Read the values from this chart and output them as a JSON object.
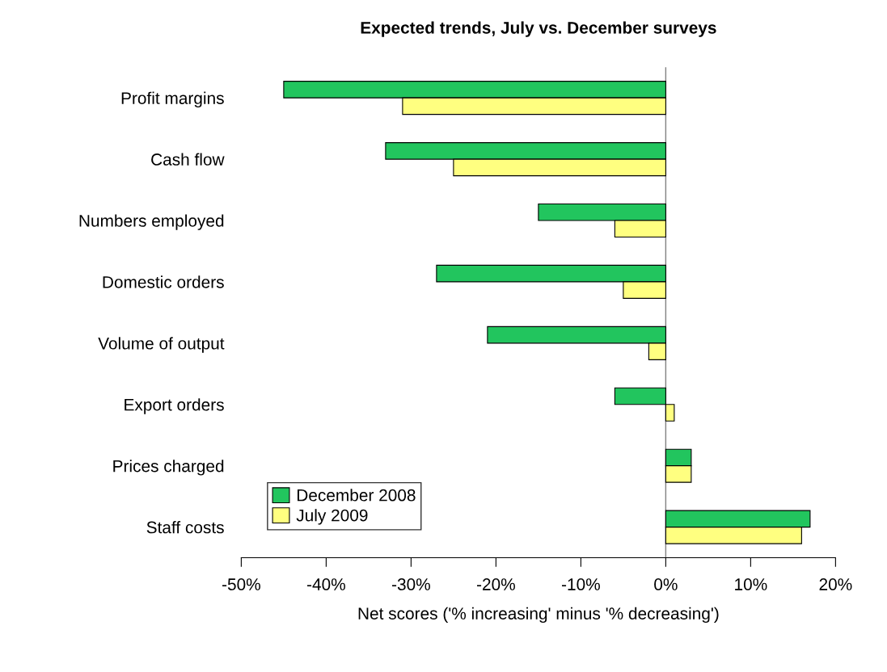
{
  "chart_data": {
    "type": "bar",
    "orientation": "horizontal",
    "title": "Expected trends, July vs. December surveys",
    "xlabel": "Net scores ('% increasing' minus '% decreasing')",
    "categories": [
      "Profit margins",
      "Cash flow",
      "Numbers employed",
      "Domestic orders",
      "Volume of output",
      "Export orders",
      "Prices charged",
      "Staff costs"
    ],
    "series": [
      {
        "name": "December 2008",
        "color": "#22c55e",
        "values": [
          -45,
          -33,
          -15,
          -27,
          -21,
          -6,
          3,
          17
        ]
      },
      {
        "name": "July 2009",
        "color": "#ffff80",
        "values": [
          -31,
          -25,
          -6,
          -5,
          -2,
          1,
          3,
          16
        ]
      }
    ],
    "xlim": [
      -50,
      20
    ],
    "xticks": [
      {
        "value": -50,
        "label": "-50%"
      },
      {
        "value": -40,
        "label": "-40%"
      },
      {
        "value": -30,
        "label": "-30%"
      },
      {
        "value": -20,
        "label": "-20%"
      },
      {
        "value": -10,
        "label": "-10%"
      },
      {
        "value": 0,
        "label": "0%"
      },
      {
        "value": 10,
        "label": "10%"
      },
      {
        "value": 20,
        "label": "20%"
      }
    ],
    "ref_lines": [
      {
        "axis": "x",
        "value": 0,
        "label": null,
        "color": "#808080"
      }
    ],
    "legend": "bottom left",
    "grid": false
  }
}
